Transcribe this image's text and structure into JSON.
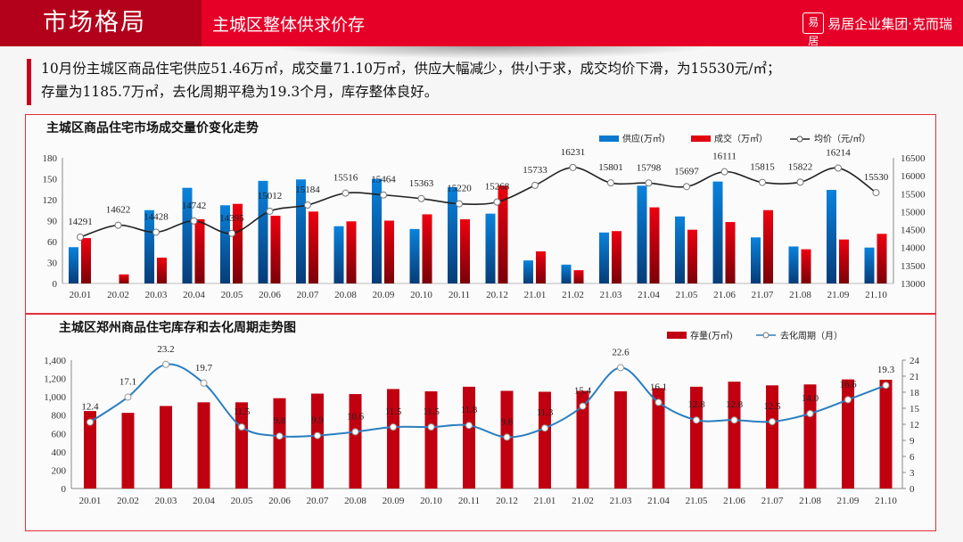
{
  "header": {
    "section": "市场格局",
    "subtitle": "主城区整体供求价存",
    "brand": "易居企业集团·克而瑞",
    "brand_logo": "易居"
  },
  "summary": {
    "line1": "10月份主城区商品住宅供应51.46万㎡，成交量71.10万㎡，供应大幅减少，供小于求，成交均价下滑，为15530元/㎡；",
    "line2": "存量为1185.7万㎡，去化周期平稳为19.3个月，库存整体良好。"
  },
  "colors": {
    "supply": "#0a78d0",
    "deal": "#e00010",
    "price_line": "#222222",
    "inventory": "#c00010",
    "cycle_line": "#2a7fc0"
  },
  "chart_data": [
    {
      "type": "bar",
      "title": "主城区商品住宅市场成交量价变化走势",
      "categories": [
        "20.01",
        "20.02",
        "20.03",
        "20.04",
        "20.05",
        "20.06",
        "20.07",
        "20.08",
        "20.09",
        "20.10",
        "20.11",
        "20.12",
        "21.01",
        "21.02",
        "21.03",
        "21.04",
        "21.05",
        "21.06",
        "21.07",
        "21.08",
        "21.09",
        "21.10"
      ],
      "series": [
        {
          "name": "供应(万㎡)",
          "axis": "left",
          "values": [
            52,
            0,
            105,
            137,
            112,
            147,
            149,
            82,
            150,
            78,
            138,
            100,
            33,
            27,
            73,
            140,
            96,
            146,
            66,
            53,
            134,
            51.46
          ]
        },
        {
          "name": "成交（万㎡）",
          "axis": "left",
          "values": [
            65,
            13,
            37,
            92,
            114,
            97,
            103,
            89,
            90,
            99,
            92,
            140,
            46,
            19,
            75,
            109,
            77,
            88,
            105,
            49,
            63,
            71.1
          ]
        },
        {
          "name": "均价（元/㎡）",
          "axis": "right",
          "type": "line",
          "values": [
            14291,
            14622,
            14428,
            14742,
            14395,
            15012,
            15184,
            15516,
            15464,
            15363,
            15220,
            15268,
            15733,
            16231,
            15801,
            15798,
            15697,
            16111,
            15815,
            15822,
            16214,
            15530
          ]
        }
      ],
      "ylim": [
        0,
        180
      ],
      "yticks": [
        "0",
        "30",
        "60",
        "90",
        "120",
        "150",
        "180"
      ],
      "y2lim": [
        13000,
        16500
      ],
      "y2ticks": [
        "13000",
        "13500",
        "14000",
        "14500",
        "15000",
        "15500",
        "16000",
        "16500"
      ],
      "legend": [
        "供应(万㎡)",
        "成交（万㎡）",
        "均价（元/㎡）"
      ],
      "legend_position": "top-right"
    },
    {
      "type": "bar",
      "title": "主城区郑州商品住宅库存和去化周期走势图",
      "categories": [
        "20.01",
        "20.02",
        "20.03",
        "20.04",
        "20.05",
        "20.06",
        "20.07",
        "20.08",
        "20.09",
        "20.10",
        "20.11",
        "20.12",
        "21.01",
        "21.02",
        "21.03",
        "21.04",
        "21.05",
        "21.06",
        "21.07",
        "21.08",
        "21.09",
        "21.10"
      ],
      "series": [
        {
          "name": "存量(万㎡)",
          "axis": "left",
          "values": [
            845,
            825,
            900,
            940,
            940,
            985,
            1035,
            1030,
            1085,
            1060,
            1110,
            1065,
            1055,
            1065,
            1060,
            1095,
            1110,
            1165,
            1125,
            1135,
            1190,
            1185.7
          ]
        },
        {
          "name": "去化周期（月）",
          "axis": "right",
          "type": "line",
          "values": [
            12.4,
            17.1,
            23.2,
            19.7,
            11.5,
            9.8,
            9.9,
            10.6,
            11.5,
            11.5,
            11.8,
            9.6,
            11.3,
            15.4,
            22.6,
            16.1,
            12.8,
            12.8,
            12.5,
            14.0,
            16.6,
            19.3
          ]
        }
      ],
      "ylim": [
        0,
        1400
      ],
      "yticks": [
        "0",
        "200",
        "400",
        "600",
        "800",
        "1,000",
        "1,200",
        "1,400"
      ],
      "y2lim": [
        0,
        24
      ],
      "y2ticks": [
        "0",
        "3",
        "6",
        "9",
        "12",
        "15",
        "18",
        "21",
        "24"
      ],
      "legend": [
        "存量(万㎡)",
        "去化周期（月）"
      ],
      "legend_position": "top-right"
    }
  ]
}
